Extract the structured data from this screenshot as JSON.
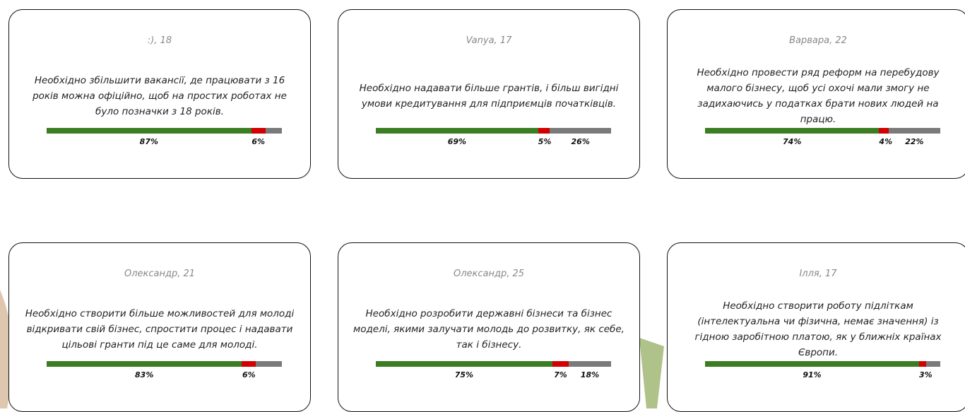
{
  "cards": [
    {
      "author": ":), 18",
      "text": "Необхідно збільшити вакансії, де працювати з 16 років можна офіційно, щоб на простих роботах не було позначки з 18 років.",
      "values": [
        87,
        6,
        7
      ],
      "labels": [
        "87%",
        "6%",
        null
      ]
    },
    {
      "author": "Vanya, 17",
      "text": "Необхідно надавати більше грантів, і більш вигідні умови кредитування для підприємців початківців.",
      "values": [
        69,
        5,
        26
      ],
      "labels": [
        "69%",
        "5%",
        "26%"
      ]
    },
    {
      "author": "Варвара, 22",
      "text": "Необхідно провести ряд реформ на перебудову малого бізнесу, щоб усі охочі мали змогу не задихаючись у податках брати нових людей на працю.",
      "values": [
        74,
        4,
        22
      ],
      "labels": [
        "74%",
        "4%",
        "22%"
      ]
    },
    {
      "author": "Олександр, 21",
      "text": "Необхідно створити більше можливостей для молоді відкривати свій бізнес, спростити процес і надавати цільові гранти під це саме для молоді.",
      "values": [
        83,
        6,
        11
      ],
      "labels": [
        "83%",
        "6%",
        null
      ]
    },
    {
      "author": "Олександр, 25",
      "text": "Необхідно розробити державні бізнеси та бізнес моделі, якими залучати молодь до розвитку, як себе, так і бізнесу.",
      "values": [
        75,
        7,
        18
      ],
      "labels": [
        "75%",
        "7%",
        "18%"
      ]
    },
    {
      "author": "Ілля, 17",
      "text": "Необхідно створити роботу підліткам (інтелектуальна чи фізична, немає значення) із гідною заробітною платою, як у ближніх країнах Європи.",
      "values": [
        91,
        3,
        6
      ],
      "labels": [
        "91%",
        "3%",
        null
      ]
    }
  ],
  "colors": [
    "#3b7d23",
    "#d40000",
    "#7a7a7a"
  ]
}
